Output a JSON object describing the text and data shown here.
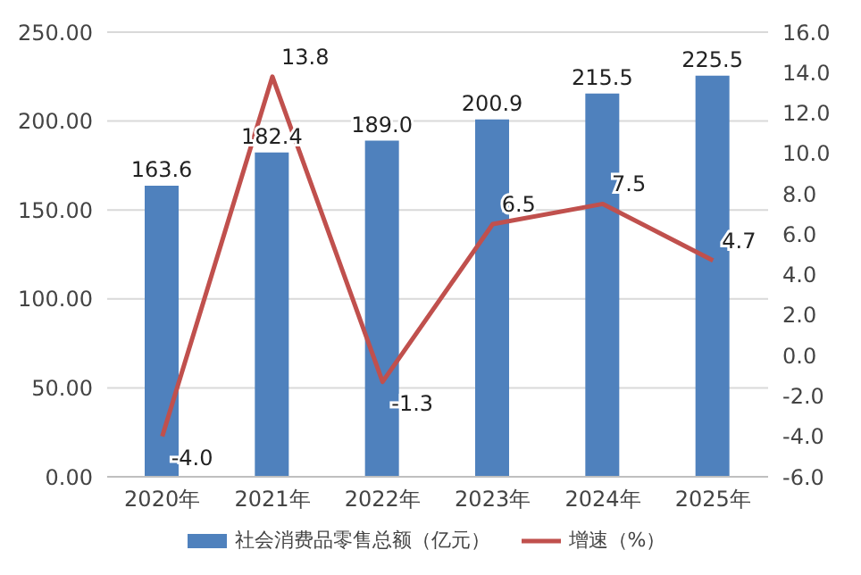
{
  "chart_data": {
    "type": "bar",
    "categories": [
      "2020年",
      "2021年",
      "2022年",
      "2023年",
      "2024年",
      "2025年"
    ],
    "series": [
      {
        "name": "社会消费品零售总额（亿元）",
        "color": "#4f81bd",
        "values": [
          163.6,
          182.4,
          189.0,
          200.9,
          215.5,
          225.5
        ],
        "value_labels": [
          "163.6",
          "182.4",
          "189.0",
          "200.9",
          "215.5",
          "225.5"
        ]
      },
      {
        "name": "增速（%）",
        "type": "line",
        "axis": "y2",
        "color": "#c0504d",
        "values": [
          -4.0,
          13.8,
          -1.3,
          6.5,
          7.5,
          4.7
        ],
        "value_labels": [
          "-4.0",
          "13.8",
          "-1.3",
          "6.5",
          "7.5",
          "4.7"
        ]
      }
    ],
    "ylim": [
      0,
      250
    ],
    "yticks": [
      {
        "value": 0,
        "label": "0.00"
      },
      {
        "value": 50,
        "label": "50.00"
      },
      {
        "value": 100,
        "label": "100.00"
      },
      {
        "value": 150,
        "label": "150.00"
      },
      {
        "value": 200,
        "label": "200.00"
      },
      {
        "value": 250,
        "label": "250.00"
      }
    ],
    "y2lim": [
      -6,
      16
    ],
    "y2ticks": [
      {
        "value": -6,
        "label": "-6.0"
      },
      {
        "value": -4,
        "label": "-4.0"
      },
      {
        "value": -2,
        "label": "-2.0"
      },
      {
        "value": 0,
        "label": "0.0"
      },
      {
        "value": 2,
        "label": "2.0"
      },
      {
        "value": 4,
        "label": "4.0"
      },
      {
        "value": 6,
        "label": "6.0"
      },
      {
        "value": 8,
        "label": "8.0"
      },
      {
        "value": 10,
        "label": "10.0"
      },
      {
        "value": 12,
        "label": "12.0"
      },
      {
        "value": 14,
        "label": "14.0"
      },
      {
        "value": 16,
        "label": "16.0"
      }
    ],
    "grid": "y",
    "legend": "bottom",
    "marker": "none",
    "line_style": "solid"
  }
}
